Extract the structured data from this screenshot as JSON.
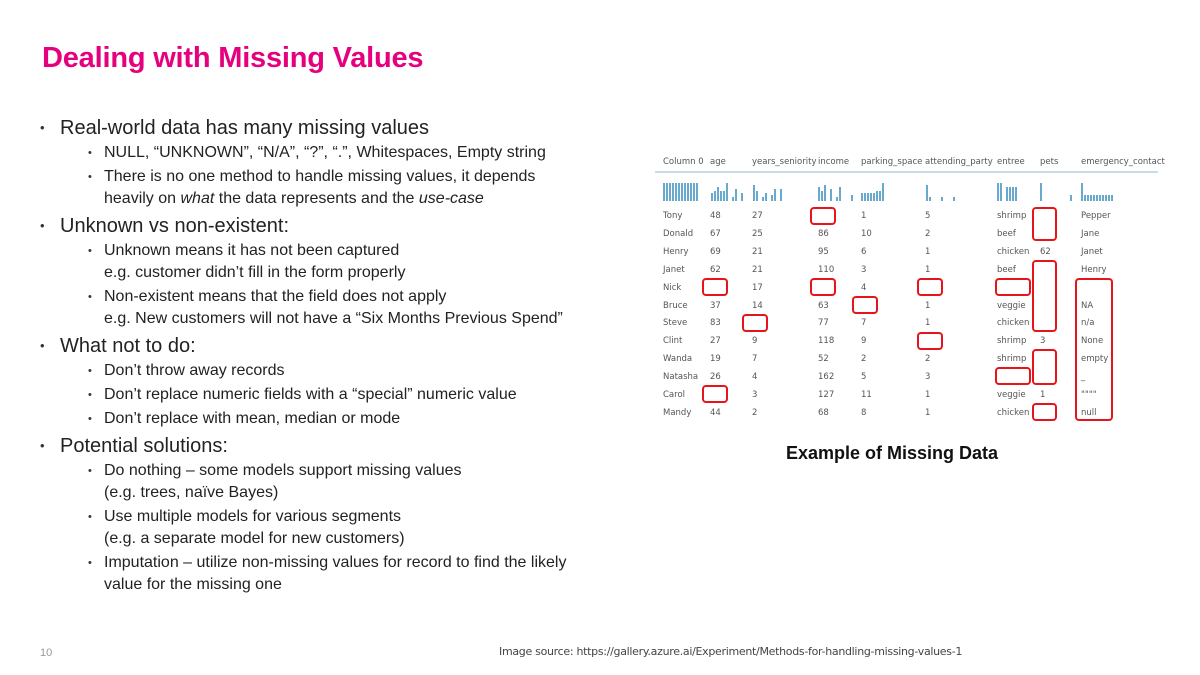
{
  "slide": {
    "title": "Dealing with Missing Values",
    "page_number": "10",
    "image_source": "Image source: https://gallery.azure.ai/Experiment/Methods-for-handling-missing-values-1",
    "caption": "Example of Missing Data",
    "accent_color": "#e6007e"
  },
  "bullets": [
    {
      "text": "Real-world data has many missing values",
      "sub": [
        {
          "lines": [
            "NULL, “UNKNOWN”, “N/A”, “?”, “.”, Whitespaces, Empty string"
          ]
        },
        {
          "lines": [
            "There is no one method to handle missing values, it depends",
            "heavily on what the data represents and the use-case"
          ]
        }
      ]
    },
    {
      "text": "Unknown vs non-existent:",
      "sub": [
        {
          "lines": [
            "Unknown means it has not been captured",
            "e.g. customer didn’t fill in the form properly"
          ]
        },
        {
          "lines": [
            "Non-existent means that the field does not apply",
            "e.g. New customers will not have a “Six Months Previous Spend”"
          ]
        }
      ]
    },
    {
      "text": "What not to do:",
      "sub": [
        {
          "lines": [
            "Don’t throw away records"
          ]
        },
        {
          "lines": [
            "Don’t replace numeric fields with a “special” numeric value"
          ]
        },
        {
          "lines": [
            "Don’t replace with mean, median or mode"
          ]
        }
      ]
    },
    {
      "text": "Potential solutions:",
      "sub": [
        {
          "lines": [
            "Do nothing – some models support missing values",
            "(e.g. trees, naïve Bayes)"
          ]
        },
        {
          "lines": [
            "Use multiple models for various segments",
            "(e.g. a separate model for new customers)"
          ]
        },
        {
          "lines": [
            "Imputation – utilize non-missing values for record to find the likely",
            "value for the missing one"
          ]
        }
      ]
    }
  ],
  "table": {
    "columns": [
      "Column 0",
      "age",
      "years_seniority",
      "income",
      "parking_space",
      "attending_party",
      "entree",
      "pets",
      "emergency_contact"
    ],
    "rows": [
      [
        "Tony",
        "48",
        "27",
        "",
        "1",
        "5",
        "shrimp",
        "",
        "Pepper"
      ],
      [
        "Donald",
        "67",
        "25",
        "86",
        "10",
        "2",
        "beef",
        "",
        "Jane"
      ],
      [
        "Henry",
        "69",
        "21",
        "95",
        "6",
        "1",
        "chicken",
        "62",
        "Janet"
      ],
      [
        "Janet",
        "62",
        "21",
        "110",
        "3",
        "1",
        "beef",
        "",
        "Henry"
      ],
      [
        "Nick",
        "",
        "17",
        "",
        "4",
        "",
        "",
        "",
        ""
      ],
      [
        "Bruce",
        "37",
        "14",
        "63",
        "",
        "1",
        "veggie",
        "",
        "NA"
      ],
      [
        "Steve",
        "83",
        "",
        "77",
        "7",
        "1",
        "chicken",
        "",
        "n/a"
      ],
      [
        "Clint",
        "27",
        "9",
        "118",
        "9",
        "",
        "shrimp",
        "3",
        "None"
      ],
      [
        "Wanda",
        "19",
        "7",
        "52",
        "2",
        "2",
        "shrimp",
        "",
        "empty"
      ],
      [
        "Natasha",
        "26",
        "4",
        "162",
        "5",
        "3",
        "",
        "",
        "_"
      ],
      [
        "Carol",
        "",
        "3",
        "127",
        "11",
        "1",
        "veggie",
        "1",
        "\"\"\"\""
      ],
      [
        "Mandy",
        "44",
        "2",
        "68",
        "8",
        "1",
        "chicken",
        "",
        "null"
      ]
    ],
    "highlight_color": "#e8141c",
    "histogram_color": "#69a9cd"
  }
}
